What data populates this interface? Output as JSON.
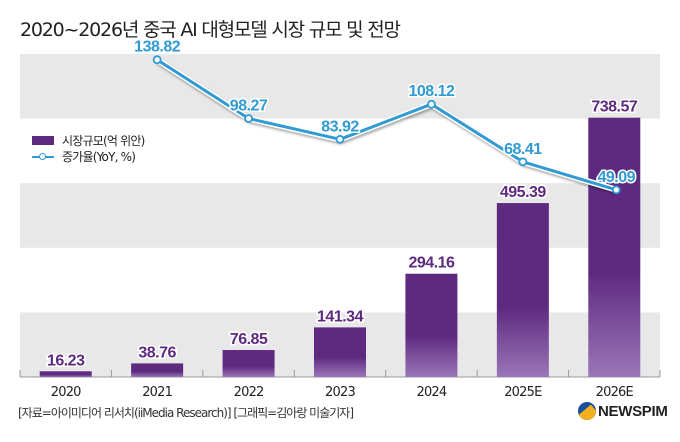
{
  "title": "2020~2026년 중국 AI 대형모델 시장 규모 및 전망",
  "legend": {
    "bar_label": "시장규모(억 위안)",
    "line_label": "증가율(YoY, %)"
  },
  "source": "[자료=아이미디어 리서치(iiMedia Research)] [그래픽=김아랑 미술기자]",
  "logo": {
    "text": "NEWSPIM",
    "icon": "newspim-logo-icon"
  },
  "colors": {
    "bar": "#5e2a80",
    "bar_light": "#9b76b8",
    "line": "#2f9bd2",
    "band": "#e8e8e8",
    "bar_label": "#5e2a80",
    "line_label": "#2f9bd2"
  },
  "chart_data": {
    "type": "bar",
    "title": "2020~2026년 중국 AI 대형모델 시장 규모 및 전망",
    "xlabel": "",
    "ylabel": "",
    "categories": [
      "2020",
      "2021",
      "2022",
      "2023",
      "2024",
      "2025E",
      "2026E"
    ],
    "series": [
      {
        "name": "시장규모(억 위안)",
        "type": "bar",
        "values": [
          16.23,
          38.76,
          76.85,
          141.34,
          294.16,
          495.39,
          738.57
        ],
        "labels": [
          "16.23",
          "38.76",
          "76.85",
          "141.34",
          "294.16",
          "495.39",
          "738.57"
        ]
      },
      {
        "name": "증가율(YoY, %)",
        "type": "line",
        "values": [
          null,
          138.82,
          98.27,
          83.92,
          108.12,
          68.41,
          49.09
        ],
        "labels": [
          null,
          "138.82",
          "98.27",
          "83.92",
          "108.12",
          "68.41",
          "49.09"
        ]
      }
    ],
    "ylim": [
      0,
      920
    ],
    "y2lim": [
      -80,
      160
    ],
    "grid": "alternating horizontal bands",
    "legend": "left"
  }
}
